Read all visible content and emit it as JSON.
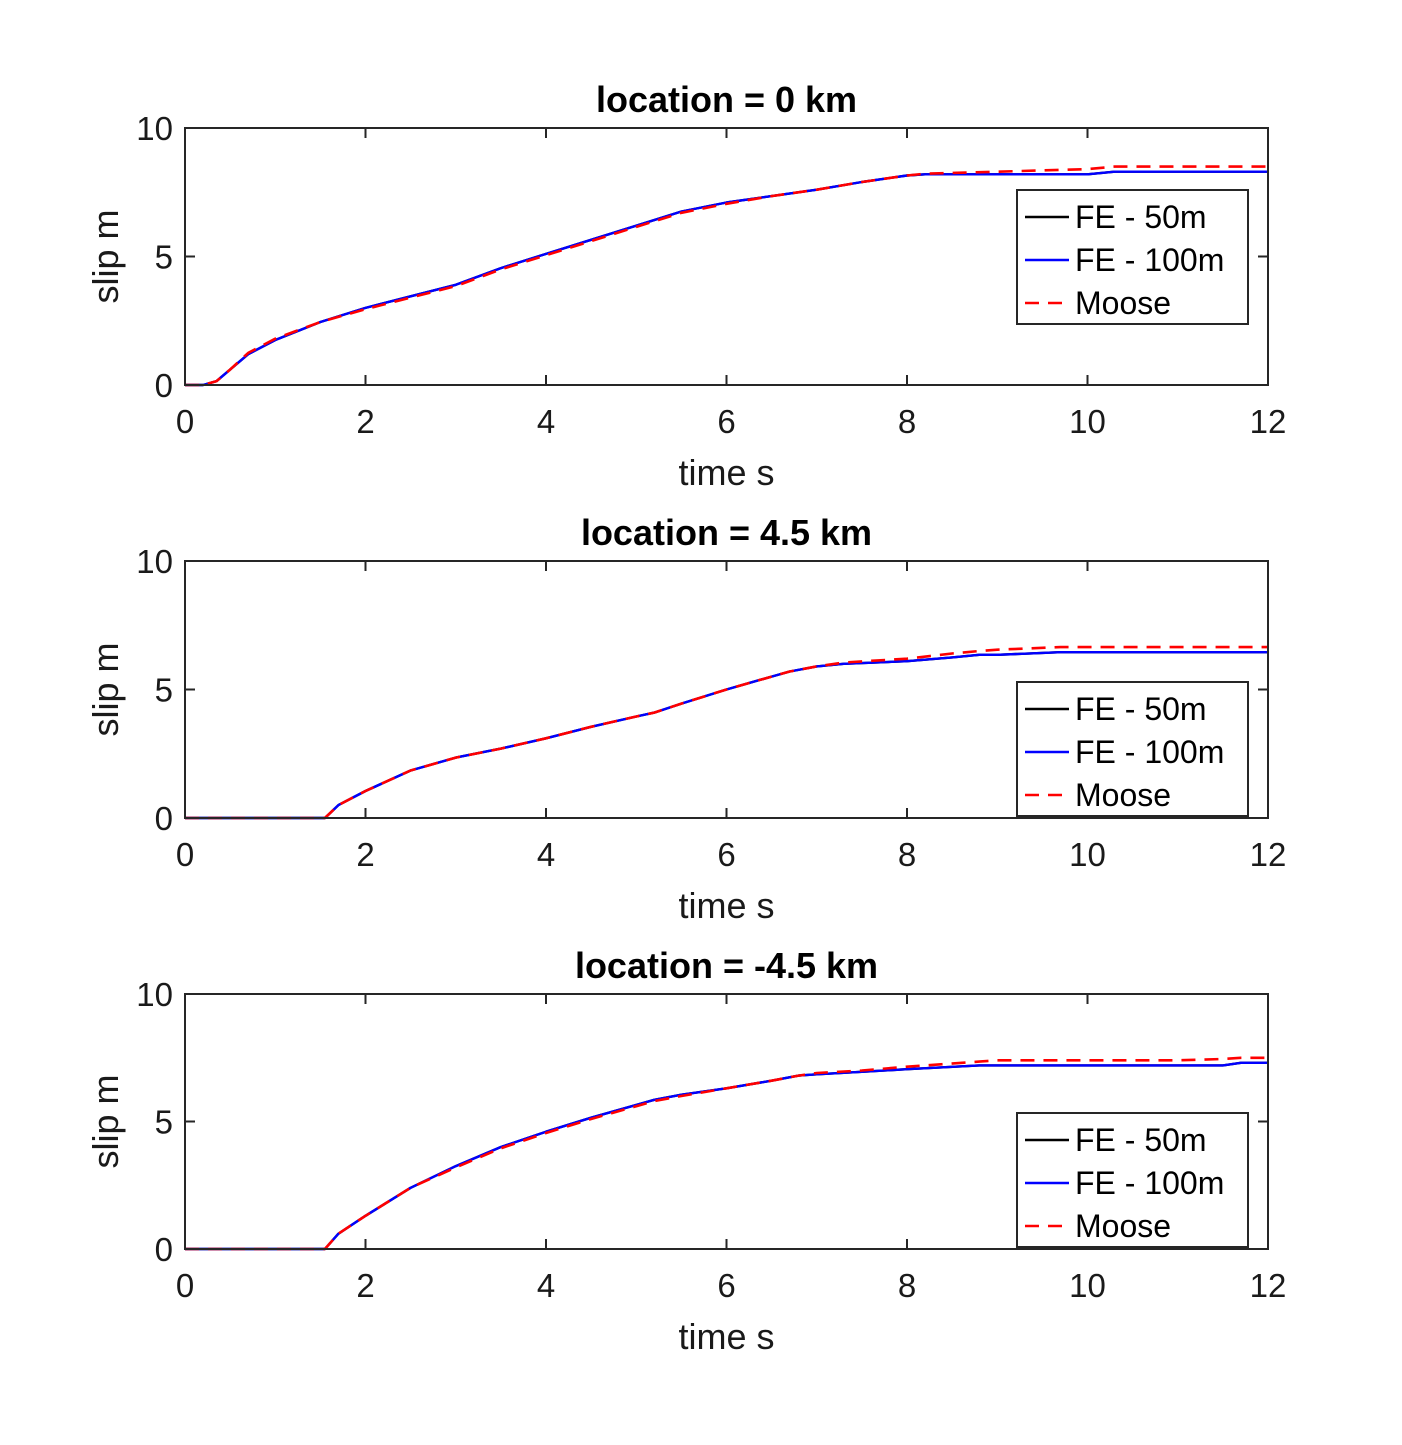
{
  "chart_data": [
    {
      "type": "line",
      "title": "location = 0 km",
      "xlabel": "time s",
      "ylabel": "slip m",
      "xlim": [
        0,
        12
      ],
      "ylim": [
        0,
        10
      ],
      "xticks": [
        0,
        2,
        4,
        6,
        8,
        10,
        12
      ],
      "yticks": [
        0,
        5,
        10
      ],
      "legend_position": "top-right",
      "series": [
        {
          "name": "FE - 50m",
          "color": "#000000",
          "style": "solid",
          "x": [
            0,
            0.2,
            0.35,
            0.5,
            0.7,
            1.0,
            1.5,
            2.0,
            2.5,
            3.0,
            3.5,
            4.0,
            4.5,
            5.0,
            5.5,
            6.0,
            6.5,
            7.0,
            7.5,
            8.0,
            8.2,
            9.0,
            10.0,
            10.3,
            11.0,
            12.0
          ],
          "y": [
            0,
            0,
            0.15,
            0.6,
            1.2,
            1.75,
            2.45,
            3.0,
            3.45,
            3.9,
            4.55,
            5.1,
            5.65,
            6.2,
            6.75,
            7.1,
            7.35,
            7.6,
            7.9,
            8.15,
            8.2,
            8.2,
            8.2,
            8.3,
            8.3,
            8.3
          ]
        },
        {
          "name": "FE - 100m",
          "color": "#0000ff",
          "style": "solid",
          "x": [
            0,
            0.2,
            0.35,
            0.5,
            0.7,
            1.0,
            1.5,
            2.0,
            2.5,
            3.0,
            3.5,
            4.0,
            4.5,
            5.0,
            5.5,
            6.0,
            6.5,
            7.0,
            7.5,
            8.0,
            8.2,
            9.0,
            10.0,
            10.3,
            11.0,
            12.0
          ],
          "y": [
            0,
            0,
            0.15,
            0.6,
            1.2,
            1.75,
            2.45,
            3.0,
            3.45,
            3.9,
            4.55,
            5.1,
            5.65,
            6.2,
            6.75,
            7.1,
            7.35,
            7.6,
            7.9,
            8.15,
            8.2,
            8.2,
            8.2,
            8.3,
            8.3,
            8.3
          ]
        },
        {
          "name": "Moose",
          "color": "#ff0000",
          "style": "dashed",
          "x": [
            0,
            0.2,
            0.35,
            0.5,
            0.7,
            1.0,
            1.5,
            2.0,
            2.5,
            3.0,
            3.5,
            4.0,
            4.5,
            5.0,
            5.5,
            6.0,
            6.5,
            7.0,
            7.5,
            8.0,
            8.2,
            9.0,
            10.0,
            10.3,
            11.0,
            12.0
          ],
          "y": [
            0,
            0,
            0.15,
            0.6,
            1.25,
            1.8,
            2.45,
            2.95,
            3.4,
            3.85,
            4.5,
            5.05,
            5.6,
            6.15,
            6.7,
            7.05,
            7.35,
            7.6,
            7.9,
            8.15,
            8.22,
            8.3,
            8.4,
            8.5,
            8.5,
            8.5
          ]
        }
      ]
    },
    {
      "type": "line",
      "title": "location = 4.5 km",
      "xlabel": "time s",
      "ylabel": "slip m",
      "xlim": [
        0,
        12
      ],
      "ylim": [
        0,
        10
      ],
      "xticks": [
        0,
        2,
        4,
        6,
        8,
        10,
        12
      ],
      "yticks": [
        0,
        5,
        10
      ],
      "legend_position": "right",
      "series": [
        {
          "name": "FE - 50m",
          "color": "#000000",
          "style": "solid",
          "x": [
            0,
            1.55,
            1.7,
            2.0,
            2.5,
            3.0,
            3.5,
            4.0,
            4.5,
            5.0,
            5.2,
            5.5,
            6.0,
            6.5,
            6.7,
            7.0,
            7.3,
            8.0,
            8.5,
            8.8,
            9.0,
            9.7,
            10.0,
            11.0,
            12.0
          ],
          "y": [
            0,
            0,
            0.5,
            1.05,
            1.85,
            2.35,
            2.7,
            3.1,
            3.55,
            3.95,
            4.1,
            4.45,
            5.0,
            5.5,
            5.7,
            5.9,
            6.0,
            6.1,
            6.25,
            6.35,
            6.35,
            6.45,
            6.45,
            6.45,
            6.45
          ]
        },
        {
          "name": "FE - 100m",
          "color": "#0000ff",
          "style": "solid",
          "x": [
            0,
            1.55,
            1.7,
            2.0,
            2.5,
            3.0,
            3.5,
            4.0,
            4.5,
            5.0,
            5.2,
            5.5,
            6.0,
            6.5,
            6.7,
            7.0,
            7.3,
            8.0,
            8.5,
            8.8,
            9.0,
            9.7,
            10.0,
            11.0,
            12.0
          ],
          "y": [
            0,
            0,
            0.5,
            1.05,
            1.85,
            2.35,
            2.7,
            3.1,
            3.55,
            3.95,
            4.1,
            4.45,
            5.0,
            5.5,
            5.7,
            5.9,
            6.0,
            6.1,
            6.25,
            6.35,
            6.35,
            6.45,
            6.45,
            6.45,
            6.45
          ]
        },
        {
          "name": "Moose",
          "color": "#ff0000",
          "style": "dashed",
          "x": [
            0,
            1.55,
            1.7,
            2.0,
            2.5,
            3.0,
            3.5,
            4.0,
            4.5,
            5.0,
            5.2,
            5.5,
            6.0,
            6.5,
            6.7,
            7.0,
            7.3,
            8.0,
            8.5,
            8.8,
            9.0,
            9.7,
            10.0,
            11.0,
            12.0
          ],
          "y": [
            0,
            0,
            0.5,
            1.05,
            1.85,
            2.35,
            2.7,
            3.1,
            3.55,
            3.95,
            4.1,
            4.45,
            5.0,
            5.5,
            5.7,
            5.9,
            6.05,
            6.2,
            6.4,
            6.5,
            6.55,
            6.65,
            6.65,
            6.65,
            6.65
          ]
        }
      ]
    },
    {
      "type": "line",
      "title": "location = -4.5 km",
      "xlabel": "time s",
      "ylabel": "slip m",
      "xlim": [
        0,
        12
      ],
      "ylim": [
        0,
        10
      ],
      "xticks": [
        0,
        2,
        4,
        6,
        8,
        10,
        12
      ],
      "yticks": [
        0,
        5,
        10
      ],
      "legend_position": "right",
      "series": [
        {
          "name": "FE - 50m",
          "color": "#000000",
          "style": "solid",
          "x": [
            0,
            1.55,
            1.7,
            2.0,
            2.5,
            3.0,
            3.5,
            4.0,
            4.5,
            5.0,
            5.2,
            5.5,
            6.0,
            6.5,
            6.8,
            7.0,
            7.5,
            8.0,
            8.8,
            9.0,
            10.0,
            11.0,
            11.5,
            11.7,
            12.0
          ],
          "y": [
            0,
            0,
            0.6,
            1.3,
            2.4,
            3.25,
            4.0,
            4.6,
            5.15,
            5.65,
            5.85,
            6.05,
            6.3,
            6.6,
            6.8,
            6.85,
            6.95,
            7.05,
            7.2,
            7.2,
            7.2,
            7.2,
            7.2,
            7.3,
            7.3
          ]
        },
        {
          "name": "FE - 100m",
          "color": "#0000ff",
          "style": "solid",
          "x": [
            0,
            1.55,
            1.7,
            2.0,
            2.5,
            3.0,
            3.5,
            4.0,
            4.5,
            5.0,
            5.2,
            5.5,
            6.0,
            6.5,
            6.8,
            7.0,
            7.5,
            8.0,
            8.8,
            9.0,
            10.0,
            11.0,
            11.5,
            11.7,
            12.0
          ],
          "y": [
            0,
            0,
            0.6,
            1.3,
            2.4,
            3.25,
            4.0,
            4.6,
            5.15,
            5.65,
            5.85,
            6.05,
            6.3,
            6.6,
            6.8,
            6.85,
            6.95,
            7.05,
            7.2,
            7.2,
            7.2,
            7.2,
            7.2,
            7.3,
            7.3
          ]
        },
        {
          "name": "Moose",
          "color": "#ff0000",
          "style": "dashed",
          "x": [
            0,
            1.55,
            1.7,
            2.0,
            2.5,
            3.0,
            3.5,
            4.0,
            4.5,
            5.0,
            5.2,
            5.5,
            6.0,
            6.5,
            6.8,
            7.0,
            7.5,
            8.0,
            8.8,
            9.0,
            10.0,
            11.0,
            11.5,
            11.7,
            12.0
          ],
          "y": [
            0,
            0,
            0.6,
            1.3,
            2.4,
            3.2,
            3.95,
            4.55,
            5.1,
            5.6,
            5.8,
            6.0,
            6.3,
            6.6,
            6.8,
            6.9,
            7.0,
            7.15,
            7.35,
            7.4,
            7.4,
            7.4,
            7.45,
            7.5,
            7.5
          ]
        }
      ]
    }
  ]
}
